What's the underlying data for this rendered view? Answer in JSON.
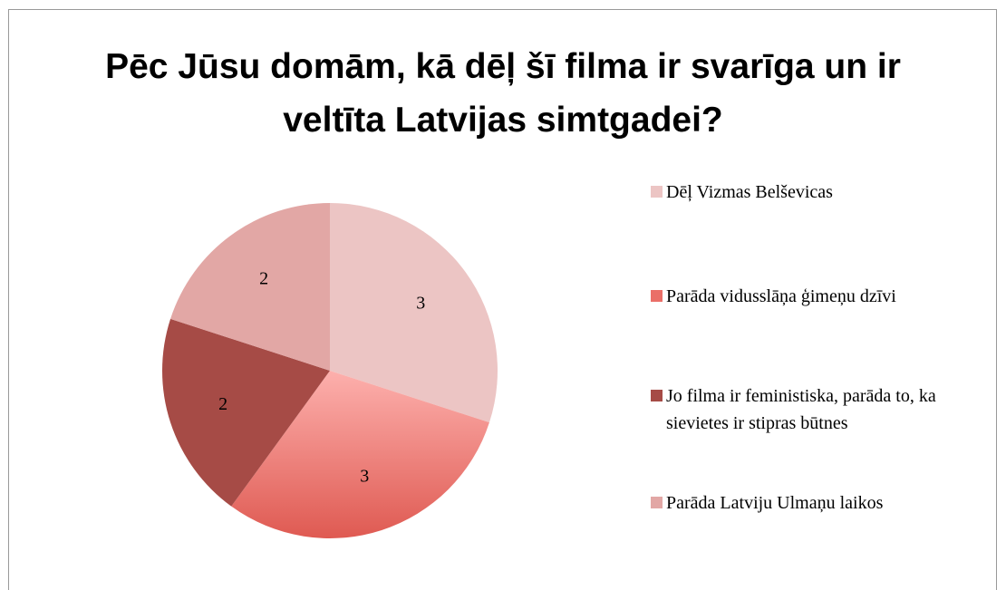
{
  "chart_data": {
    "type": "pie",
    "title": "Pēc Jūsu domām, kā dēļ šī filma ir svarīga un ir veltīta Latvijas simtgadei?",
    "categories": [
      "Dēļ Vizmas Belševicas",
      "Parāda vidusslāņa ģimeņu dzīvi",
      "Jo filma ir feministiska, parāda to, ka sievietes ir stipras būtnes",
      "Parāda Latviju Ulmaņu laikos"
    ],
    "values": [
      3,
      3,
      2,
      2
    ],
    "colors": [
      "#ecc5c4",
      "#e9756f",
      "#a64b46",
      "#e2a7a5"
    ],
    "legend": "right"
  }
}
